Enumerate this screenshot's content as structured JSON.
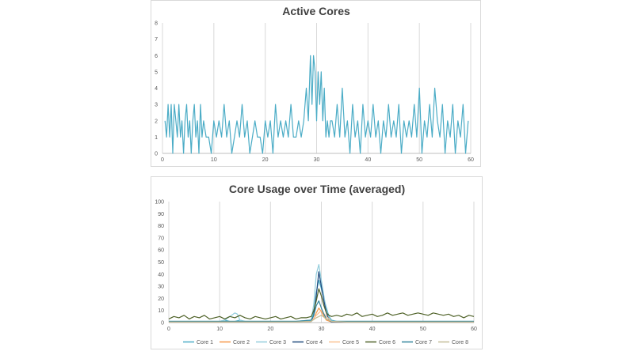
{
  "chart_data": [
    {
      "type": "line",
      "title": "Active Cores",
      "xlabel": "",
      "ylabel": "",
      "xlim": [
        0,
        60
      ],
      "ylim": [
        0,
        8
      ],
      "xticks": [
        "0",
        "10",
        "20",
        "30",
        "40",
        "50",
        "60"
      ],
      "yticks": [
        "0",
        "1",
        "2",
        "3",
        "4",
        "5",
        "6",
        "7",
        "8"
      ],
      "grid": "vertical",
      "legend": "none",
      "colors": [
        "#4bacc6"
      ],
      "series": [
        {
          "x": [
            0.5,
            0.8,
            1.1,
            1.4,
            1.7,
            2.0,
            2.3,
            2.6,
            2.9,
            3.2,
            3.5,
            3.8,
            4.1,
            4.4,
            4.7,
            5.0,
            5.3,
            5.6,
            5.9,
            6.2,
            6.5,
            6.8,
            7.1,
            7.4,
            7.7,
            8.0,
            8.5,
            9.0,
            9.5,
            10.0,
            10.5,
            11.0,
            11.5,
            12.0,
            12.5,
            13.0,
            13.5,
            14.0,
            14.5,
            15.0,
            15.5,
            16.0,
            16.5,
            17.0,
            17.5,
            18.0,
            18.5,
            19.0,
            19.5,
            20.0,
            20.5,
            21.0,
            21.5,
            22.0,
            22.5,
            23.0,
            23.5,
            24.0,
            24.5,
            25.0,
            25.5,
            26.0,
            26.5,
            27.0,
            27.5,
            28.0,
            28.4,
            28.8,
            29.1,
            29.4,
            29.7,
            30.0,
            30.3,
            30.6,
            30.9,
            31.2,
            31.5,
            31.8,
            32.1,
            32.4,
            32.7,
            33.0,
            33.5,
            34.0,
            34.5,
            35.0,
            35.5,
            36.0,
            36.5,
            37.0,
            37.5,
            38.0,
            38.5,
            39.0,
            39.5,
            40.0,
            40.5,
            41.0,
            41.5,
            42.0,
            42.5,
            43.0,
            43.5,
            44.0,
            44.5,
            45.0,
            45.5,
            46.0,
            46.5,
            47.0,
            47.5,
            48.0,
            48.5,
            49.0,
            49.5,
            50.0,
            50.5,
            51.0,
            51.5,
            52.0,
            52.5,
            53.0,
            53.5,
            54.0,
            54.5,
            55.0,
            55.5,
            56.0,
            56.5,
            57.0,
            57.5,
            58.0,
            58.5,
            59.0,
            59.5
          ],
          "y": [
            2,
            1,
            3,
            1,
            3,
            0,
            3,
            2,
            1,
            3,
            1,
            2,
            0,
            2,
            3,
            1,
            2,
            0,
            2,
            3,
            1,
            2,
            0,
            3,
            1,
            2,
            1,
            1,
            0,
            2,
            1,
            2,
            1,
            3,
            1,
            2,
            0,
            1,
            2,
            1,
            3,
            1,
            2,
            0,
            1,
            2,
            1,
            1,
            0,
            2,
            1,
            2,
            0,
            3,
            1,
            2,
            1,
            2,
            1,
            3,
            1,
            1,
            2,
            1,
            2,
            4,
            2,
            6,
            3,
            6,
            5,
            2,
            5,
            3,
            5,
            2,
            4,
            1,
            2,
            1,
            2,
            2,
            1,
            3,
            1,
            4,
            1,
            2,
            0,
            3,
            1,
            2,
            0,
            3,
            1,
            2,
            1,
            3,
            1,
            2,
            0,
            2,
            1,
            3,
            1,
            2,
            1,
            3,
            0,
            2,
            1,
            2,
            1,
            3,
            1,
            4,
            0,
            2,
            1,
            3,
            1,
            4,
            2,
            1,
            3,
            0,
            2,
            1,
            3,
            0,
            2,
            1,
            3,
            0,
            2
          ]
        }
      ]
    },
    {
      "type": "line",
      "title": "Core Usage over Time (averaged)",
      "xlabel": "",
      "ylabel": "",
      "xlim": [
        0,
        60
      ],
      "ylim": [
        0,
        100
      ],
      "xticks": [
        "0",
        "10",
        "20",
        "30",
        "40",
        "50",
        "60"
      ],
      "yticks": [
        "0",
        "10",
        "20",
        "30",
        "40",
        "50",
        "60",
        "70",
        "80",
        "90",
        "100"
      ],
      "grid": "vertical",
      "legend": "bottom",
      "series": [
        {
          "name": "Core 1",
          "color": "#4bacc6",
          "x": [
            0,
            5,
            10,
            11,
            12,
            13,
            14,
            15,
            20,
            25,
            27,
            28,
            28.5,
            29,
            29.5,
            30,
            30.5,
            31,
            31.5,
            32,
            33,
            35,
            40,
            45,
            50,
            55,
            60
          ],
          "y": [
            1,
            1,
            1,
            2,
            1,
            1,
            2,
            1,
            1,
            1,
            1,
            2,
            8,
            25,
            35,
            28,
            20,
            12,
            5,
            2,
            1,
            1,
            1,
            1,
            1,
            1,
            1
          ]
        },
        {
          "name": "Core 2",
          "color": "#f79646",
          "x": [
            0,
            5,
            10,
            15,
            20,
            25,
            28,
            28.5,
            29,
            29.5,
            30,
            30.5,
            31,
            32,
            35,
            40,
            45,
            50,
            55,
            60
          ],
          "y": [
            0.5,
            0.5,
            0.5,
            0.5,
            0.5,
            0.5,
            1,
            3,
            8,
            12,
            9,
            5,
            2,
            0.5,
            0.5,
            0.5,
            0.5,
            0.5,
            0.5,
            0.5
          ]
        },
        {
          "name": "Core 3",
          "color": "#92cddc",
          "x": [
            0,
            5,
            10,
            11,
            12,
            13,
            13.5,
            14,
            15,
            20,
            25,
            28,
            28.5,
            29,
            29.5,
            30,
            30.5,
            31,
            31.5,
            32,
            35,
            40,
            45,
            50,
            55,
            60
          ],
          "y": [
            1,
            1,
            1,
            2,
            5,
            8,
            7,
            2,
            1,
            1,
            1,
            2,
            15,
            40,
            48,
            35,
            22,
            10,
            4,
            1,
            1,
            1,
            1,
            1,
            1,
            1
          ]
        },
        {
          "name": "Core 4",
          "color": "#1f497d",
          "x": [
            0,
            5,
            10,
            15,
            20,
            25,
            28,
            28.5,
            29,
            29.5,
            30,
            30.5,
            31,
            31.5,
            32,
            35,
            40,
            45,
            50,
            55,
            60
          ],
          "y": [
            0.5,
            0.5,
            0.5,
            0.5,
            0.5,
            0.5,
            1,
            6,
            22,
            42,
            30,
            18,
            8,
            2,
            0.5,
            0.5,
            0.5,
            0.5,
            0.5,
            0.5,
            0.5
          ]
        },
        {
          "name": "Core 5",
          "color": "#fac090",
          "x": [
            0,
            5,
            10,
            15,
            20,
            25,
            28,
            29,
            30,
            31,
            32,
            35,
            40,
            45,
            50,
            55,
            60
          ],
          "y": [
            0.5,
            0.5,
            0.5,
            0.5,
            0.5,
            0.5,
            1,
            6,
            10,
            5,
            1,
            0.5,
            0.5,
            0.5,
            0.5,
            0.5,
            0.5
          ]
        },
        {
          "name": "Core 6",
          "color": "#4f6228",
          "x": [
            0,
            1,
            2,
            3,
            4,
            5,
            6,
            7,
            8,
            9,
            10,
            11,
            12,
            13,
            14,
            15,
            16,
            17,
            18,
            19,
            20,
            21,
            22,
            23,
            24,
            25,
            26,
            27,
            28,
            28.5,
            29,
            29.5,
            30,
            30.5,
            31,
            31.5,
            32,
            33,
            34,
            35,
            36,
            37,
            38,
            39,
            40,
            41,
            42,
            43,
            44,
            45,
            46,
            47,
            48,
            49,
            50,
            51,
            52,
            53,
            54,
            55,
            56,
            57,
            58,
            59,
            60
          ],
          "y": [
            3,
            5,
            4,
            6,
            3,
            5,
            4,
            6,
            3,
            4,
            5,
            3,
            5,
            4,
            6,
            4,
            3,
            5,
            4,
            3,
            4,
            5,
            3,
            4,
            5,
            3,
            4,
            4,
            5,
            10,
            18,
            28,
            22,
            14,
            8,
            6,
            5,
            6,
            5,
            7,
            6,
            8,
            5,
            6,
            7,
            5,
            6,
            8,
            6,
            7,
            8,
            6,
            7,
            8,
            7,
            6,
            8,
            7,
            6,
            7,
            5,
            6,
            4,
            6,
            5
          ]
        },
        {
          "name": "Core 7",
          "color": "#31859c",
          "x": [
            0,
            5,
            10,
            15,
            20,
            25,
            28,
            28.5,
            29,
            29.5,
            30,
            30.5,
            31,
            32,
            35,
            40,
            45,
            50,
            55,
            60
          ],
          "y": [
            1,
            1,
            1,
            1,
            1,
            1,
            2,
            6,
            14,
            18,
            12,
            7,
            3,
            1,
            1,
            1,
            1,
            1,
            1,
            1
          ]
        },
        {
          "name": "Core 8",
          "color": "#c4bd97",
          "x": [
            0,
            5,
            10,
            15,
            20,
            25,
            28,
            29,
            30,
            31,
            32,
            35,
            40,
            45,
            50,
            55,
            60
          ],
          "y": [
            0.5,
            0.5,
            0.5,
            0.5,
            0.5,
            0.5,
            1,
            4,
            6,
            3,
            1,
            0.5,
            0.5,
            0.5,
            0.5,
            0.5,
            0.5
          ]
        }
      ]
    }
  ]
}
